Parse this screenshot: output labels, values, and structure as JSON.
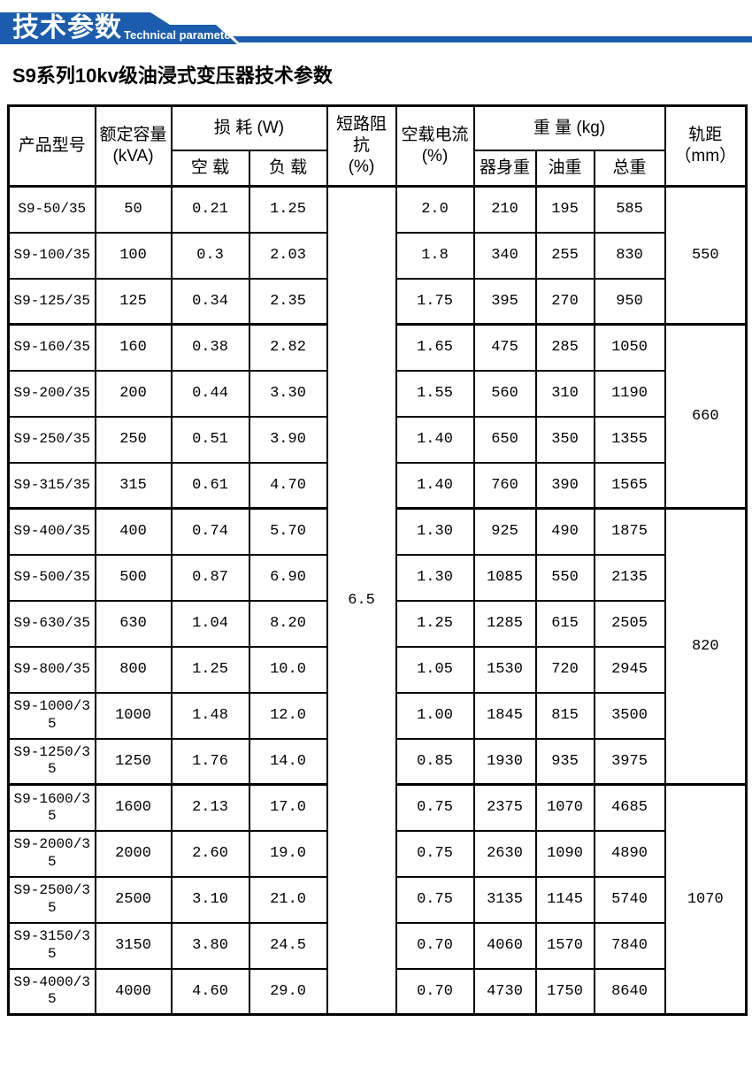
{
  "banner": {
    "title": "技术参数",
    "subtitle": "Technical parameter",
    "color": "#1b5cae"
  },
  "page_title": "S9系列10kv级油浸式变压器技术参数",
  "table": {
    "headers": {
      "model": "产品型号",
      "capacity": "额定容量\n(kVA)",
      "loss_group": "损 耗 (W)",
      "loss_no_load": "空 载",
      "loss_load": "负 载",
      "impedance": "短路阻\n抗\n(%)",
      "no_load_current": "空载电流\n(%)",
      "weight_group": "重 量 (kg)",
      "weight_body": "器身重",
      "weight_oil": "油重",
      "weight_total": "总重",
      "gauge": "轨距\n（mm）"
    },
    "impedance_value": "6.5",
    "rows": [
      {
        "model": "S9-50/35",
        "capacity": "50",
        "no_load_loss": "0.21",
        "load_loss": "1.25",
        "no_load_current": "2.0",
        "body_weight": "210",
        "oil_weight": "195",
        "total_weight": "585"
      },
      {
        "model": "S9-100/35",
        "capacity": "100",
        "no_load_loss": "0.3",
        "load_loss": "2.03",
        "no_load_current": "1.8",
        "body_weight": "340",
        "oil_weight": "255",
        "total_weight": "830"
      },
      {
        "model": "S9-125/35",
        "capacity": "125",
        "no_load_loss": "0.34",
        "load_loss": "2.35",
        "no_load_current": "1.75",
        "body_weight": "395",
        "oil_weight": "270",
        "total_weight": "950"
      },
      {
        "model": "S9-160/35",
        "capacity": "160",
        "no_load_loss": "0.38",
        "load_loss": "2.82",
        "no_load_current": "1.65",
        "body_weight": "475",
        "oil_weight": "285",
        "total_weight": "1050"
      },
      {
        "model": "S9-200/35",
        "capacity": "200",
        "no_load_loss": "0.44",
        "load_loss": "3.30",
        "no_load_current": "1.55",
        "body_weight": "560",
        "oil_weight": "310",
        "total_weight": "1190"
      },
      {
        "model": "S9-250/35",
        "capacity": "250",
        "no_load_loss": "0.51",
        "load_loss": "3.90",
        "no_load_current": "1.40",
        "body_weight": "650",
        "oil_weight": "350",
        "total_weight": "1355"
      },
      {
        "model": "S9-315/35",
        "capacity": "315",
        "no_load_loss": "0.61",
        "load_loss": "4.70",
        "no_load_current": "1.40",
        "body_weight": "760",
        "oil_weight": "390",
        "total_weight": "1565"
      },
      {
        "model": "S9-400/35",
        "capacity": "400",
        "no_load_loss": "0.74",
        "load_loss": "5.70",
        "no_load_current": "1.30",
        "body_weight": "925",
        "oil_weight": "490",
        "total_weight": "1875"
      },
      {
        "model": "S9-500/35",
        "capacity": "500",
        "no_load_loss": "0.87",
        "load_loss": "6.90",
        "no_load_current": "1.30",
        "body_weight": "1085",
        "oil_weight": "550",
        "total_weight": "2135"
      },
      {
        "model": "S9-630/35",
        "capacity": "630",
        "no_load_loss": "1.04",
        "load_loss": "8.20",
        "no_load_current": "1.25",
        "body_weight": "1285",
        "oil_weight": "615",
        "total_weight": "2505"
      },
      {
        "model": "S9-800/35",
        "capacity": "800",
        "no_load_loss": "1.25",
        "load_loss": "10.0",
        "no_load_current": "1.05",
        "body_weight": "1530",
        "oil_weight": "720",
        "total_weight": "2945"
      },
      {
        "model": "S9-1000/35",
        "capacity": "1000",
        "no_load_loss": "1.48",
        "load_loss": "12.0",
        "no_load_current": "1.00",
        "body_weight": "1845",
        "oil_weight": "815",
        "total_weight": "3500"
      },
      {
        "model": "S9-1250/35",
        "capacity": "1250",
        "no_load_loss": "1.76",
        "load_loss": "14.0",
        "no_load_current": "0.85",
        "body_weight": "1930",
        "oil_weight": "935",
        "total_weight": "3975"
      },
      {
        "model": "S9-1600/35",
        "capacity": "1600",
        "no_load_loss": "2.13",
        "load_loss": "17.0",
        "no_load_current": "0.75",
        "body_weight": "2375",
        "oil_weight": "1070",
        "total_weight": "4685"
      },
      {
        "model": "S9-2000/35",
        "capacity": "2000",
        "no_load_loss": "2.60",
        "load_loss": "19.0",
        "no_load_current": "0.75",
        "body_weight": "2630",
        "oil_weight": "1090",
        "total_weight": "4890"
      },
      {
        "model": "S9-2500/35",
        "capacity": "2500",
        "no_load_loss": "3.10",
        "load_loss": "21.0",
        "no_load_current": "0.75",
        "body_weight": "3135",
        "oil_weight": "1145",
        "total_weight": "5740"
      },
      {
        "model": "S9-3150/35",
        "capacity": "3150",
        "no_load_loss": "3.80",
        "load_loss": "24.5",
        "no_load_current": "0.70",
        "body_weight": "4060",
        "oil_weight": "1570",
        "total_weight": "7840"
      },
      {
        "model": "S9-4000/35",
        "capacity": "4000",
        "no_load_loss": "4.60",
        "load_loss": "29.0",
        "no_load_current": "0.70",
        "body_weight": "4730",
        "oil_weight": "1750",
        "total_weight": "8640"
      }
    ],
    "gauge_groups": [
      {
        "value": "550",
        "rows": 3
      },
      {
        "value": "660",
        "rows": 4
      },
      {
        "value": "820",
        "rows": 6
      },
      {
        "value": "1070",
        "rows": 5
      }
    ]
  }
}
